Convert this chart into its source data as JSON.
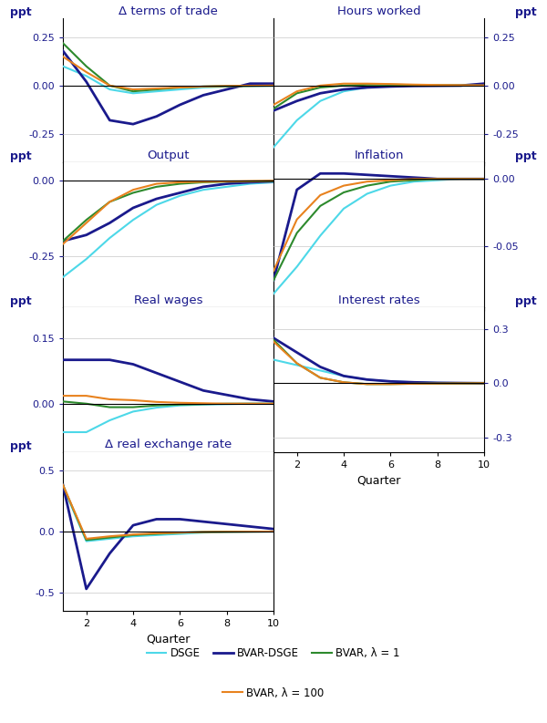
{
  "quarters": [
    1,
    2,
    3,
    4,
    5,
    6,
    7,
    8,
    9,
    10
  ],
  "colors": {
    "DSGE": "#4DD8E8",
    "BVAR_DSGE": "#1a1a8c",
    "BVAR_1": "#2d8a2d",
    "BVAR_100": "#e8821e"
  },
  "panels": {
    "terms_of_trade": {
      "title": "Δ terms of trade",
      "side": "left",
      "ylim": [
        -0.4,
        0.35
      ],
      "yticks": [
        -0.25,
        0.0,
        0.25
      ],
      "ytick_labels": [
        "-0.25",
        "0.00",
        "0.25"
      ],
      "DSGE": [
        0.1,
        0.05,
        -0.02,
        -0.04,
        -0.03,
        -0.02,
        -0.01,
        -0.005,
        -0.002,
        -0.001
      ],
      "BVAR_DSGE": [
        0.18,
        0.02,
        -0.18,
        -0.2,
        -0.16,
        -0.1,
        -0.05,
        -0.02,
        0.01,
        0.01
      ],
      "BVAR_1": [
        0.22,
        0.1,
        0.0,
        -0.03,
        -0.02,
        -0.01,
        -0.005,
        -0.003,
        -0.002,
        -0.001
      ],
      "BVAR_100": [
        0.15,
        0.07,
        0.0,
        -0.02,
        -0.015,
        -0.01,
        -0.005,
        -0.002,
        -0.001,
        0.0
      ]
    },
    "hours_worked": {
      "title": "Hours worked",
      "side": "right",
      "ylim": [
        -0.4,
        0.35
      ],
      "yticks": [
        -0.25,
        0.0,
        0.25
      ],
      "ytick_labels": [
        "-0.25",
        "0.00",
        "0.25"
      ],
      "DSGE": [
        -0.32,
        -0.18,
        -0.08,
        -0.03,
        -0.01,
        0.0,
        0.0,
        0.0,
        0.0,
        0.0
      ],
      "BVAR_DSGE": [
        -0.13,
        -0.08,
        -0.04,
        -0.02,
        -0.01,
        -0.005,
        -0.002,
        -0.001,
        0.0,
        0.01
      ],
      "BVAR_1": [
        -0.12,
        -0.04,
        -0.01,
        0.0,
        0.005,
        0.005,
        0.003,
        0.002,
        0.001,
        0.0
      ],
      "BVAR_100": [
        -0.1,
        -0.03,
        0.0,
        0.01,
        0.01,
        0.008,
        0.005,
        0.003,
        0.002,
        0.001
      ]
    },
    "output": {
      "title": "Output",
      "side": "left",
      "ylim": [
        -0.42,
        0.06
      ],
      "yticks": [
        -0.25,
        0.0
      ],
      "ytick_labels": [
        "-0.25",
        "0.00"
      ],
      "DSGE": [
        -0.32,
        -0.26,
        -0.19,
        -0.13,
        -0.08,
        -0.05,
        -0.03,
        -0.02,
        -0.01,
        -0.005
      ],
      "BVAR_DSGE": [
        -0.2,
        -0.18,
        -0.14,
        -0.09,
        -0.06,
        -0.04,
        -0.02,
        -0.01,
        -0.005,
        -0.002
      ],
      "BVAR_1": [
        -0.2,
        -0.13,
        -0.07,
        -0.04,
        -0.02,
        -0.01,
        -0.005,
        -0.003,
        -0.002,
        -0.001
      ],
      "BVAR_100": [
        -0.21,
        -0.14,
        -0.07,
        -0.03,
        -0.01,
        -0.005,
        -0.003,
        -0.002,
        -0.001,
        0.0
      ]
    },
    "inflation": {
      "title": "Inflation",
      "side": "right",
      "ylim": [
        -0.095,
        0.012
      ],
      "yticks": [
        -0.05,
        0.0
      ],
      "ytick_labels": [
        "-0.05",
        "0.00"
      ],
      "DSGE": [
        -0.085,
        -0.065,
        -0.042,
        -0.022,
        -0.011,
        -0.005,
        -0.002,
        -0.001,
        0.0,
        0.0
      ],
      "BVAR_DSGE": [
        -0.075,
        -0.008,
        0.004,
        0.004,
        0.003,
        0.002,
        0.001,
        0.0,
        0.0,
        0.0
      ],
      "BVAR_1": [
        -0.075,
        -0.04,
        -0.02,
        -0.01,
        -0.005,
        -0.002,
        -0.001,
        0.0,
        0.0,
        0.0
      ],
      "BVAR_100": [
        -0.068,
        -0.03,
        -0.012,
        -0.005,
        -0.002,
        -0.001,
        0.0,
        0.0,
        0.0,
        0.0
      ]
    },
    "real_wages": {
      "title": "Real wages",
      "side": "left",
      "ylim": [
        -0.11,
        0.22
      ],
      "yticks": [
        0.0,
        0.15
      ],
      "ytick_labels": [
        "0.00",
        "0.15"
      ],
      "DSGE": [
        -0.065,
        -0.065,
        -0.038,
        -0.018,
        -0.009,
        -0.004,
        -0.002,
        -0.001,
        0.0,
        0.0
      ],
      "BVAR_DSGE": [
        0.1,
        0.1,
        0.1,
        0.09,
        0.07,
        0.05,
        0.03,
        0.02,
        0.01,
        0.005
      ],
      "BVAR_1": [
        0.005,
        0.0,
        -0.008,
        -0.008,
        -0.004,
        -0.002,
        -0.001,
        0.0,
        0.0,
        0.0
      ],
      "BVAR_100": [
        0.018,
        0.018,
        0.01,
        0.008,
        0.004,
        0.002,
        0.001,
        0.0,
        0.0,
        0.0
      ]
    },
    "interest_rates": {
      "title": "Interest rates",
      "side": "right",
      "ylim": [
        -0.38,
        0.42
      ],
      "yticks": [
        -0.3,
        0.0,
        0.3
      ],
      "ytick_labels": [
        "-0.3",
        "0.0",
        "0.3"
      ],
      "DSGE": [
        0.13,
        0.1,
        0.07,
        0.04,
        0.02,
        0.01,
        0.005,
        0.002,
        0.001,
        0.0
      ],
      "BVAR_DSGE": [
        0.25,
        0.17,
        0.09,
        0.04,
        0.02,
        0.01,
        0.005,
        0.002,
        0.001,
        0.0
      ],
      "BVAR_1": [
        0.24,
        0.11,
        0.03,
        0.005,
        -0.005,
        -0.005,
        -0.003,
        -0.002,
        -0.001,
        0.0
      ],
      "BVAR_100": [
        0.23,
        0.11,
        0.03,
        0.005,
        -0.005,
        -0.005,
        -0.003,
        -0.002,
        -0.001,
        0.0
      ]
    },
    "real_exchange_rate": {
      "title": "Δ real exchange rate",
      "side": "left",
      "ylim": [
        -0.65,
        0.65
      ],
      "yticks": [
        -0.5,
        0.0,
        0.5
      ],
      "ytick_labels": [
        "-0.5",
        "0.0",
        "0.5"
      ],
      "DSGE": [
        0.37,
        -0.08,
        -0.06,
        -0.04,
        -0.03,
        -0.02,
        -0.01,
        -0.005,
        -0.002,
        -0.001
      ],
      "BVAR_DSGE": [
        0.38,
        -0.47,
        -0.18,
        0.05,
        0.1,
        0.1,
        0.08,
        0.06,
        0.04,
        0.02
      ],
      "BVAR_1": [
        0.38,
        -0.07,
        -0.05,
        -0.03,
        -0.02,
        -0.01,
        -0.005,
        -0.003,
        -0.002,
        -0.001
      ],
      "BVAR_100": [
        0.38,
        -0.06,
        -0.04,
        -0.025,
        -0.015,
        -0.01,
        -0.005,
        -0.003,
        -0.002,
        -0.001
      ]
    }
  },
  "legend": {
    "DSGE": "DSGE",
    "BVAR_DSGE": "BVAR-DSGE",
    "BVAR_1": "BVAR, λ = 1",
    "BVAR_100": "BVAR, λ = 100"
  },
  "xlabel": "Quarter",
  "text_color": "#1a1a8c",
  "label_color": "#000000",
  "background_color": "#ffffff"
}
